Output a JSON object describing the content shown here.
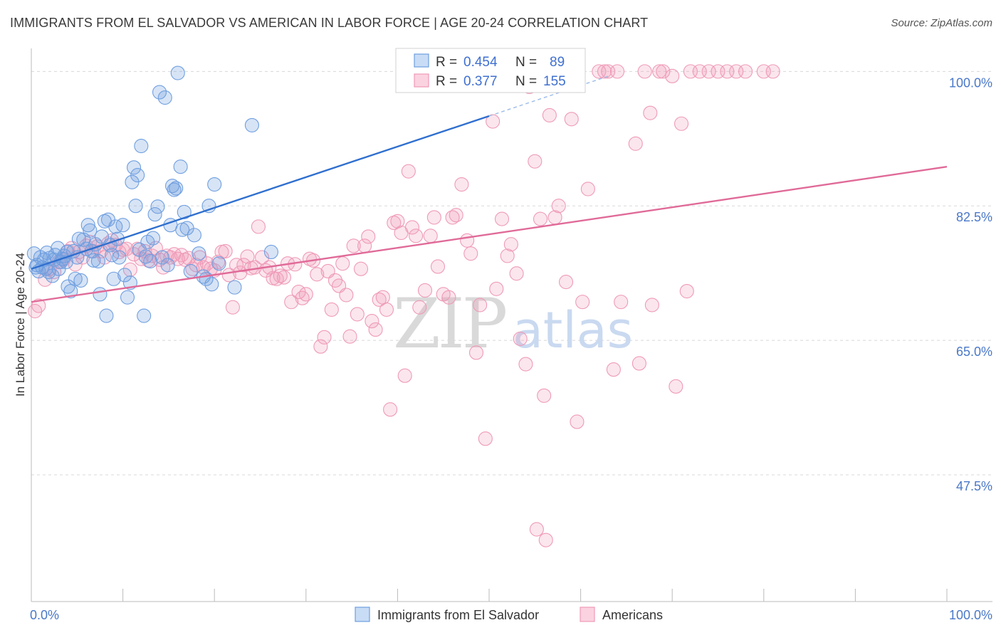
{
  "title": "IMMIGRANTS FROM EL SALVADOR VS AMERICAN IN LABOR FORCE | AGE 20-24 CORRELATION CHART",
  "source": "Source: ZipAtlas.com",
  "watermark": {
    "zip": "ZIP",
    "atlas": "atlas"
  },
  "colors": {
    "blue": "#6f9fe0",
    "blue_line": "#2f6fcf",
    "pink": "#ef9ab8",
    "pink_line": "#e06a98",
    "tick": "#4a78c8",
    "grid": "#d8d8d8"
  },
  "legend_stats": [
    {
      "r_label": "R =",
      "r_value": "0.454",
      "n_label": "N =",
      "n_value": "89",
      "series": "blue"
    },
    {
      "r_label": "R =",
      "r_value": "0.377",
      "n_label": "N =",
      "n_value": "155",
      "series": "pink"
    }
  ],
  "chart_data": {
    "type": "scatter",
    "title": "IMMIGRANTS FROM EL SALVADOR VS AMERICAN IN LABOR FORCE | AGE 20-24 CORRELATION CHART",
    "xlabel": "",
    "ylabel": "In Labor Force | Age 20-24",
    "xlim": [
      0,
      100
    ],
    "ylim": [
      31,
      103
    ],
    "x_ticks": [
      "0.0%",
      "100.0%"
    ],
    "y_ticks": [
      {
        "value": 100,
        "label": "100.0%"
      },
      {
        "value": 82.5,
        "label": "82.5%"
      },
      {
        "value": 65,
        "label": "65.0%"
      },
      {
        "value": 47.5,
        "label": "47.5%"
      }
    ],
    "grid": "horizontal dashed",
    "legend_position": "bottom",
    "series": [
      {
        "name": "Immigrants from El Salvador",
        "color": "#6f9fe0",
        "trend": {
          "x": [
            0,
            50
          ],
          "y": [
            74.3,
            94.2
          ],
          "extend_dashed_to_x": 63
        },
        "points": [
          [
            0.3,
            76.3
          ],
          [
            0.5,
            74.5
          ],
          [
            0.6,
            74.8
          ],
          [
            0.8,
            74.0
          ],
          [
            1.0,
            75.8
          ],
          [
            1.2,
            74.5
          ],
          [
            1.4,
            75.5
          ],
          [
            1.6,
            74.3
          ],
          [
            1.7,
            76.4
          ],
          [
            1.9,
            73.9
          ],
          [
            2.0,
            75.7
          ],
          [
            2.3,
            73.4
          ],
          [
            2.5,
            75.5
          ],
          [
            2.6,
            76.1
          ],
          [
            2.9,
            77.0
          ],
          [
            3.0,
            74.3
          ],
          [
            3.2,
            75.2
          ],
          [
            3.4,
            75.6
          ],
          [
            3.6,
            76.0
          ],
          [
            3.8,
            75.2
          ],
          [
            3.9,
            76.5
          ],
          [
            4.0,
            72.0
          ],
          [
            4.3,
            71.4
          ],
          [
            4.6,
            76.6
          ],
          [
            4.8,
            73.0
          ],
          [
            5.0,
            75.8
          ],
          [
            5.2,
            78.2
          ],
          [
            5.4,
            72.8
          ],
          [
            5.7,
            78.1
          ],
          [
            6.0,
            76.9
          ],
          [
            6.2,
            80.0
          ],
          [
            6.4,
            79.3
          ],
          [
            6.6,
            76.6
          ],
          [
            6.8,
            75.4
          ],
          [
            7.0,
            77.5
          ],
          [
            7.3,
            75.3
          ],
          [
            7.5,
            71.0
          ],
          [
            7.7,
            78.5
          ],
          [
            8.0,
            80.5
          ],
          [
            8.2,
            68.2
          ],
          [
            8.4,
            80.7
          ],
          [
            8.6,
            77.4
          ],
          [
            8.8,
            76.1
          ],
          [
            9.0,
            73.0
          ],
          [
            9.2,
            79.8
          ],
          [
            9.4,
            78.2
          ],
          [
            9.6,
            75.8
          ],
          [
            10.0,
            80.0
          ],
          [
            10.2,
            73.5
          ],
          [
            10.5,
            70.6
          ],
          [
            10.8,
            72.5
          ],
          [
            11.0,
            85.6
          ],
          [
            11.2,
            87.5
          ],
          [
            11.4,
            82.5
          ],
          [
            11.6,
            86.5
          ],
          [
            11.8,
            76.8
          ],
          [
            12.0,
            90.3
          ],
          [
            12.3,
            68.2
          ],
          [
            12.5,
            75.9
          ],
          [
            12.7,
            77.8
          ],
          [
            13.0,
            75.3
          ],
          [
            13.3,
            78.3
          ],
          [
            13.5,
            81.4
          ],
          [
            13.8,
            82.4
          ],
          [
            14.0,
            97.3
          ],
          [
            14.3,
            75.8
          ],
          [
            14.6,
            96.6
          ],
          [
            14.9,
            74.8
          ],
          [
            15.2,
            80.0
          ],
          [
            15.4,
            85.1
          ],
          [
            15.6,
            84.6
          ],
          [
            15.8,
            84.8
          ],
          [
            16.0,
            99.8
          ],
          [
            16.3,
            87.6
          ],
          [
            16.5,
            79.4
          ],
          [
            16.7,
            81.7
          ],
          [
            17.0,
            79.6
          ],
          [
            17.4,
            74.0
          ],
          [
            17.8,
            78.7
          ],
          [
            18.3,
            76.3
          ],
          [
            18.8,
            73.3
          ],
          [
            19.1,
            73.0
          ],
          [
            19.4,
            82.5
          ],
          [
            19.7,
            72.3
          ],
          [
            20.0,
            85.3
          ],
          [
            20.5,
            75.0
          ],
          [
            22.2,
            71.9
          ],
          [
            24.1,
            93.0
          ],
          [
            26.2,
            76.5
          ],
          [
            43.0,
            99.8
          ]
        ]
      },
      {
        "name": "Americans",
        "color": "#ef9ab8",
        "trend": {
          "x": [
            0,
            100
          ],
          "y": [
            70.0,
            87.6
          ]
        },
        "points": [
          [
            0.4,
            68.8
          ],
          [
            0.8,
            69.5
          ],
          [
            1.5,
            72.9
          ],
          [
            2.0,
            74.3
          ],
          [
            2.5,
            73.9
          ],
          [
            3.0,
            75.2
          ],
          [
            3.5,
            75.5
          ],
          [
            4.0,
            76.6
          ],
          [
            4.4,
            77.0
          ],
          [
            4.8,
            74.9
          ],
          [
            5.2,
            76.5
          ],
          [
            5.6,
            75.8
          ],
          [
            6.0,
            77.3
          ],
          [
            6.4,
            77.8
          ],
          [
            6.8,
            76.6
          ],
          [
            7.2,
            77.2
          ],
          [
            7.6,
            76.6
          ],
          [
            8.0,
            75.8
          ],
          [
            8.4,
            77.6
          ],
          [
            8.8,
            78.0
          ],
          [
            9.2,
            77.4
          ],
          [
            9.6,
            76.5
          ],
          [
            10.0,
            76.8
          ],
          [
            10.4,
            76.9
          ],
          [
            10.8,
            74.2
          ],
          [
            11.2,
            76.2
          ],
          [
            11.6,
            76.9
          ],
          [
            12.0,
            75.6
          ],
          [
            12.4,
            76.6
          ],
          [
            12.8,
            75.4
          ],
          [
            13.2,
            76.0
          ],
          [
            13.6,
            77.0
          ],
          [
            14.0,
            75.5
          ],
          [
            14.4,
            74.5
          ],
          [
            14.8,
            76.0
          ],
          [
            15.2,
            75.8
          ],
          [
            15.6,
            76.2
          ],
          [
            16.0,
            75.6
          ],
          [
            16.4,
            76.1
          ],
          [
            16.8,
            75.5
          ],
          [
            17.2,
            75.7
          ],
          [
            17.6,
            74.3
          ],
          [
            18.0,
            74.8
          ],
          [
            18.4,
            75.8
          ],
          [
            18.8,
            74.5
          ],
          [
            19.2,
            75.0
          ],
          [
            19.6,
            74.3
          ],
          [
            20.0,
            74.1
          ],
          [
            20.4,
            75.2
          ],
          [
            20.8,
            76.5
          ],
          [
            21.2,
            76.6
          ],
          [
            21.6,
            73.5
          ],
          [
            22.0,
            69.3
          ],
          [
            22.4,
            74.8
          ],
          [
            22.8,
            73.8
          ],
          [
            23.2,
            74.8
          ],
          [
            23.6,
            75.9
          ],
          [
            24.0,
            74.4
          ],
          [
            24.4,
            74.5
          ],
          [
            24.8,
            79.8
          ],
          [
            25.2,
            75.8
          ],
          [
            25.6,
            74.1
          ],
          [
            26.0,
            74.5
          ],
          [
            26.4,
            73.1
          ],
          [
            26.8,
            73.0
          ],
          [
            27.2,
            73.4
          ],
          [
            27.6,
            73.2
          ],
          [
            28.0,
            75.0
          ],
          [
            28.4,
            70.0
          ],
          [
            28.8,
            74.9
          ],
          [
            29.2,
            71.3
          ],
          [
            29.6,
            70.5
          ],
          [
            30.0,
            71.0
          ],
          [
            30.4,
            75.6
          ],
          [
            30.8,
            75.4
          ],
          [
            31.2,
            73.6
          ],
          [
            31.6,
            64.2
          ],
          [
            32.0,
            65.4
          ],
          [
            32.4,
            74.0
          ],
          [
            32.8,
            69.0
          ],
          [
            33.2,
            72.8
          ],
          [
            33.6,
            72.1
          ],
          [
            34.0,
            75.0
          ],
          [
            34.4,
            70.9
          ],
          [
            34.8,
            65.5
          ],
          [
            35.2,
            77.3
          ],
          [
            35.6,
            68.4
          ],
          [
            36.0,
            74.3
          ],
          [
            36.4,
            77.3
          ],
          [
            36.8,
            78.5
          ],
          [
            37.2,
            67.5
          ],
          [
            37.6,
            66.4
          ],
          [
            38.0,
            70.3
          ],
          [
            38.4,
            70.6
          ],
          [
            38.8,
            69.0
          ],
          [
            39.2,
            56.0
          ],
          [
            39.6,
            80.3
          ],
          [
            40.0,
            80.5
          ],
          [
            40.4,
            79.0
          ],
          [
            40.8,
            60.4
          ],
          [
            41.2,
            87.0
          ],
          [
            41.6,
            79.7
          ],
          [
            42.0,
            78.6
          ],
          [
            42.4,
            69.3
          ],
          [
            43.0,
            71.5
          ],
          [
            43.6,
            78.6
          ],
          [
            44.0,
            81.0
          ],
          [
            44.4,
            74.6
          ],
          [
            45.0,
            71.0
          ],
          [
            45.6,
            70.6
          ],
          [
            46.0,
            81.0
          ],
          [
            46.4,
            81.3
          ],
          [
            47.0,
            85.3
          ],
          [
            47.6,
            78.0
          ],
          [
            48.0,
            76.3
          ],
          [
            48.6,
            63.4
          ],
          [
            49.0,
            69.6
          ],
          [
            49.6,
            52.2
          ],
          [
            50.4,
            93.5
          ],
          [
            50.8,
            71.7
          ],
          [
            51.4,
            80.8
          ],
          [
            52.0,
            76.0
          ],
          [
            52.4,
            77.5
          ],
          [
            53.0,
            73.7
          ],
          [
            53.4,
            65.2
          ],
          [
            54.0,
            61.9
          ],
          [
            54.4,
            98.0
          ],
          [
            55.0,
            88.3
          ],
          [
            55.6,
            80.8
          ],
          [
            56.0,
            57.8
          ],
          [
            56.6,
            94.3
          ],
          [
            57.2,
            81.0
          ],
          [
            57.6,
            82.5
          ],
          [
            58.4,
            72.6
          ],
          [
            59.0,
            93.8
          ],
          [
            59.6,
            54.4
          ],
          [
            60.2,
            70.0
          ],
          [
            60.8,
            84.7
          ],
          [
            62.0,
            100.0
          ],
          [
            62.6,
            100.0
          ],
          [
            63.0,
            100.0
          ],
          [
            63.6,
            61.2
          ],
          [
            64.0,
            100.0
          ],
          [
            64.4,
            70.0
          ],
          [
            66.0,
            90.6
          ],
          [
            66.4,
            62.0
          ],
          [
            67.0,
            100.0
          ],
          [
            67.6,
            94.6
          ],
          [
            68.6,
            100.0
          ],
          [
            69.0,
            100.0
          ],
          [
            70.0,
            99.4
          ],
          [
            70.4,
            59.0
          ],
          [
            71.0,
            93.2
          ],
          [
            71.6,
            71.4
          ],
          [
            72.0,
            100.0
          ],
          [
            73.0,
            100.0
          ],
          [
            74.0,
            100.0
          ],
          [
            75.0,
            100.0
          ],
          [
            76.0,
            100.0
          ],
          [
            77.0,
            100.0
          ],
          [
            78.0,
            100.0
          ],
          [
            80.0,
            100.0
          ],
          [
            81.0,
            100.0
          ],
          [
            67.8,
            69.6
          ],
          [
            55.2,
            40.4
          ],
          [
            56.2,
            39.0
          ]
        ]
      }
    ]
  }
}
